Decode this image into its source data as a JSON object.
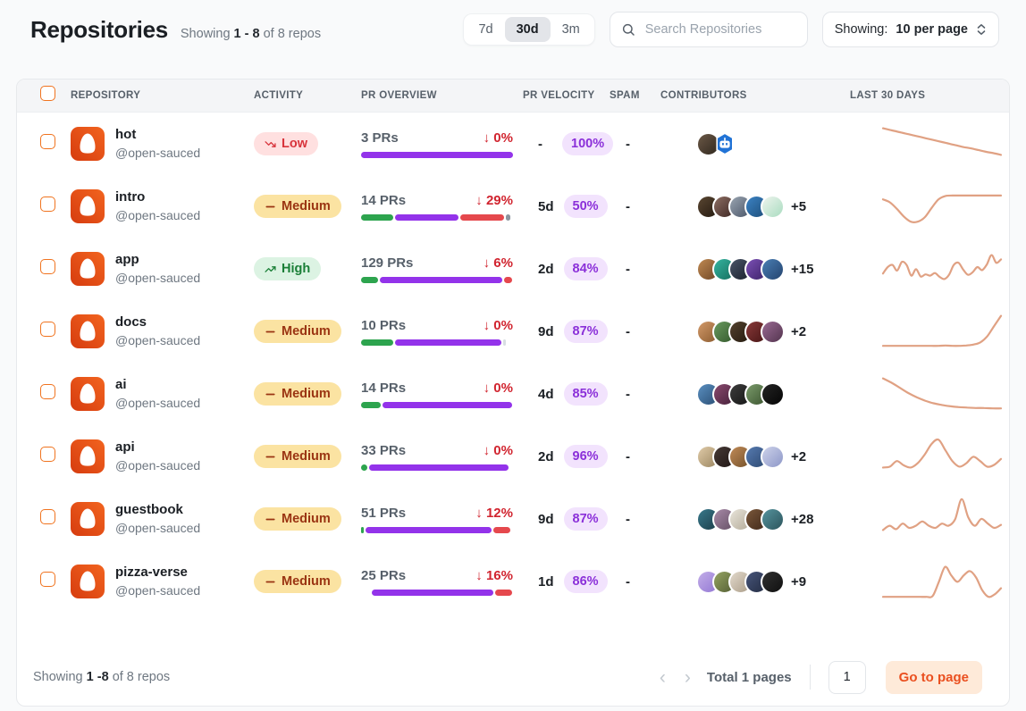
{
  "header": {
    "title": "Repositories",
    "showing_prefix": "Showing",
    "showing_range": "1 - 8",
    "showing_suffix": "of 8 repos"
  },
  "toolbar": {
    "ranges": {
      "r7d": "7d",
      "r30d": "30d",
      "r3m": "3m",
      "active": "30d"
    },
    "search_placeholder": "Search Repositories",
    "per_page_prefix": "Showing:",
    "per_page_value": "10 per page"
  },
  "table": {
    "headers": {
      "repository": "REPOSITORY",
      "activity": "ACTIVITY",
      "pr_overview": "PR OVERVIEW",
      "pr_velocity": "PR VELOCITY",
      "spam": "SPAM",
      "contributors": "CONTRIBUTORS",
      "last_30_days": "LAST 30 DAYS"
    },
    "rows": [
      {
        "name": "hot",
        "org": "@open-sauced",
        "activity": {
          "level": "Low",
          "trend": "down"
        },
        "pr_overview": {
          "label": "3 PRs",
          "change": "↓ 0%",
          "segments": [
            [
              "bar_purple",
              100
            ]
          ]
        },
        "pr_velocity": {
          "days": "-",
          "accuracy": "100%"
        },
        "spam": "-",
        "contributors": {
          "avatars": [
            [
              "#6b5846",
              "#30281f"
            ]
          ],
          "bot": true,
          "extra": ""
        },
        "spark": [
          0.82,
          0.78,
          0.74,
          0.7,
          0.66,
          0.62,
          0.58,
          0.54,
          0.5,
          0.46,
          0.42,
          0.38,
          0.35,
          0.31,
          0.27,
          0.24,
          0.2
        ]
      },
      {
        "name": "intro",
        "org": "@open-sauced",
        "activity": {
          "level": "Medium",
          "trend": "flat"
        },
        "pr_overview": {
          "label": "14 PRs",
          "change": "↓ 29%",
          "segments": [
            [
              "bar_green",
              21
            ],
            [
              "bar_purple",
              42
            ],
            [
              "bar_red",
              29
            ],
            [
              "bar_gray",
              3
            ]
          ]
        },
        "pr_velocity": {
          "days": "5d",
          "accuracy": "50%"
        },
        "spam": "-",
        "contributors": {
          "avatars": [
            [
              "#5a4632",
              "#241a10"
            ],
            [
              "#8d6e63",
              "#3e2723"
            ],
            [
              "#9aa5b1",
              "#4a5568"
            ],
            [
              "#3b82c4",
              "#1e4e79"
            ],
            [
              "#eef4ee",
              "#a9dcc0"
            ]
          ],
          "bot": false,
          "extra": "+5"
        },
        "spark": [
          0.62,
          0.55,
          0.4,
          0.22,
          0.1,
          0.1,
          0.2,
          0.42,
          0.62,
          0.7,
          0.71,
          0.71,
          0.71,
          0.71,
          0.71,
          0.71,
          0.71,
          0.71
        ]
      },
      {
        "name": "app",
        "org": "@open-sauced",
        "activity": {
          "level": "High",
          "trend": "up"
        },
        "pr_overview": {
          "label": "129 PRs",
          "change": "↓ 6%",
          "segments": [
            [
              "bar_green",
              11
            ],
            [
              "bar_purple",
              81
            ],
            [
              "bar_red",
              5
            ]
          ]
        },
        "pr_velocity": {
          "days": "2d",
          "accuracy": "84%"
        },
        "spam": "-",
        "contributors": {
          "avatars": [
            [
              "#c08a52",
              "#6e4526"
            ],
            [
              "#35b5a0",
              "#176e5e"
            ],
            [
              "#4a5568",
              "#1a202c"
            ],
            [
              "#7b4fb5",
              "#3d2368"
            ],
            [
              "#4a7fb5",
              "#24436e"
            ]
          ],
          "bot": false,
          "extra": "+15"
        },
        "spark": [
          0.35,
          0.5,
          0.55,
          0.42,
          0.62,
          0.55,
          0.3,
          0.45,
          0.28,
          0.33,
          0.3,
          0.36,
          0.27,
          0.22,
          0.32,
          0.55,
          0.6,
          0.44,
          0.32,
          0.38,
          0.5,
          0.43,
          0.56,
          0.78,
          0.6,
          0.68
        ]
      },
      {
        "name": "docs",
        "org": "@open-sauced",
        "activity": {
          "level": "Medium",
          "trend": "flat"
        },
        "pr_overview": {
          "label": "10 PRs",
          "change": "↓ 0%",
          "segments": [
            [
              "bar_green",
              21
            ],
            [
              "bar_purple",
              70
            ],
            [
              "bar_light",
              2
            ]
          ]
        },
        "pr_velocity": {
          "days": "9d",
          "accuracy": "87%"
        },
        "spam": "-",
        "contributors": {
          "avatars": [
            [
              "#d39a6a",
              "#8a5a2e"
            ],
            [
              "#6a9a5f",
              "#33592c"
            ],
            [
              "#54422e",
              "#241a0f"
            ],
            [
              "#8a3a3a",
              "#461414"
            ],
            [
              "#9a6a93",
              "#53344e"
            ]
          ],
          "bot": false,
          "extra": "+2"
        },
        "spark": [
          0.12,
          0.12,
          0.12,
          0.12,
          0.12,
          0.12,
          0.12,
          0.12,
          0.12,
          0.13,
          0.12,
          0.12,
          0.13,
          0.15,
          0.2,
          0.34,
          0.58,
          0.82
        ]
      },
      {
        "name": "ai",
        "org": "@open-sauced",
        "activity": {
          "level": "Medium",
          "trend": "flat"
        },
        "pr_overview": {
          "label": "14 PRs",
          "change": "↓ 0%",
          "segments": [
            [
              "bar_green",
              13
            ],
            [
              "bar_purple",
              85
            ]
          ]
        },
        "pr_velocity": {
          "days": "4d",
          "accuracy": "85%"
        },
        "spam": "-",
        "contributors": {
          "avatars": [
            [
              "#5a8fc0",
              "#2a4e74"
            ],
            [
              "#8a4a6e",
              "#46203a"
            ],
            [
              "#3c3c3c",
              "#161616"
            ],
            [
              "#7a9a6a",
              "#3c5530"
            ],
            [
              "#242424",
              "#050505"
            ]
          ],
          "bot": false,
          "extra": ""
        },
        "spark": [
          0.82,
          0.72,
          0.6,
          0.48,
          0.38,
          0.3,
          0.24,
          0.2,
          0.17,
          0.15,
          0.14,
          0.13,
          0.13,
          0.12,
          0.12
        ]
      },
      {
        "name": "api",
        "org": "@open-sauced",
        "activity": {
          "level": "Medium",
          "trend": "flat"
        },
        "pr_overview": {
          "label": "33 PRs",
          "change": "↓ 0%",
          "segments": [
            [
              "bar_green",
              4
            ],
            [
              "bar_purple",
              92
            ]
          ]
        },
        "pr_velocity": {
          "days": "2d",
          "accuracy": "96%"
        },
        "spam": "-",
        "contributors": {
          "avatars": [
            [
              "#e0cba8",
              "#9a8560"
            ],
            [
              "#463a36",
              "#201614"
            ],
            [
              "#c08a57",
              "#74512a"
            ],
            [
              "#567ab0",
              "#2e4a72"
            ],
            [
              "#cdd2ea",
              "#8d97c8"
            ]
          ],
          "bot": false,
          "extra": "+2"
        },
        "spark": [
          0.2,
          0.22,
          0.35,
          0.25,
          0.2,
          0.3,
          0.5,
          0.75,
          0.85,
          0.6,
          0.35,
          0.22,
          0.3,
          0.45,
          0.35,
          0.22,
          0.26,
          0.4
        ]
      },
      {
        "name": "guestbook",
        "org": "@open-sauced",
        "activity": {
          "level": "Medium",
          "trend": "flat"
        },
        "pr_overview": {
          "label": "51 PRs",
          "change": "↓ 12%",
          "segments": [
            [
              "bar_green",
              2
            ],
            [
              "bar_purple",
              83
            ],
            [
              "bar_red",
              11
            ]
          ]
        },
        "pr_velocity": {
          "days": "9d",
          "accuracy": "87%"
        },
        "spam": "-",
        "contributors": {
          "avatars": [
            [
              "#39798c",
              "#1b3d48"
            ],
            [
              "#a88aa8",
              "#655065"
            ],
            [
              "#e8e4da",
              "#b4ab99"
            ],
            [
              "#7a573a",
              "#40291a"
            ],
            [
              "#56949e",
              "#2c545c"
            ]
          ],
          "bot": false,
          "extra": "+28"
        },
        "spark": [
          0.2,
          0.3,
          0.22,
          0.35,
          0.25,
          0.3,
          0.4,
          0.3,
          0.25,
          0.35,
          0.3,
          0.45,
          0.92,
          0.5,
          0.3,
          0.46,
          0.35,
          0.25,
          0.32
        ]
      },
      {
        "name": "pizza-verse",
        "org": "@open-sauced",
        "activity": {
          "level": "Medium",
          "trend": "flat"
        },
        "pr_overview": {
          "label": "25 PRs",
          "change": "↓ 16%",
          "segments": [
            [
              "bar_none",
              6
            ],
            [
              "bar_purple",
              80
            ],
            [
              "bar_red",
              11
            ]
          ]
        },
        "pr_velocity": {
          "days": "1d",
          "accuracy": "86%"
        },
        "spam": "-",
        "contributors": {
          "avatars": [
            [
              "#c3aee8",
              "#9277d4"
            ],
            [
              "#95a463",
              "#545e33"
            ],
            [
              "#e2d9cc",
              "#ab9d88"
            ],
            [
              "#47557a",
              "#232c42"
            ],
            [
              "#303030",
              "#101010"
            ]
          ],
          "bot": false,
          "extra": "+9"
        },
        "spark": [
          0.1,
          0.1,
          0.1,
          0.1,
          0.1,
          0.1,
          0.1,
          0.1,
          0.12,
          0.45,
          0.8,
          0.6,
          0.45,
          0.6,
          0.7,
          0.55,
          0.25,
          0.1,
          0.16,
          0.3
        ]
      }
    ]
  },
  "footer": {
    "showing_prefix": "Showing",
    "showing_range": "1 -8",
    "showing_suffix": "of 8 repos",
    "prev": "‹",
    "next": "›",
    "total_pages": "Total 1 pages",
    "page_value": "1",
    "go_button": "Go to page"
  },
  "colors": {
    "bar_green": "#2da44e",
    "bar_purple": "#9333ea",
    "bar_red": "#e5484d",
    "bar_gray": "#8c959f",
    "bar_light": "#d8dde3",
    "bar_none": "transparent",
    "spark": "#e0a183",
    "accent_orange": "#f0731f",
    "bot_blue": "#2173d6"
  }
}
